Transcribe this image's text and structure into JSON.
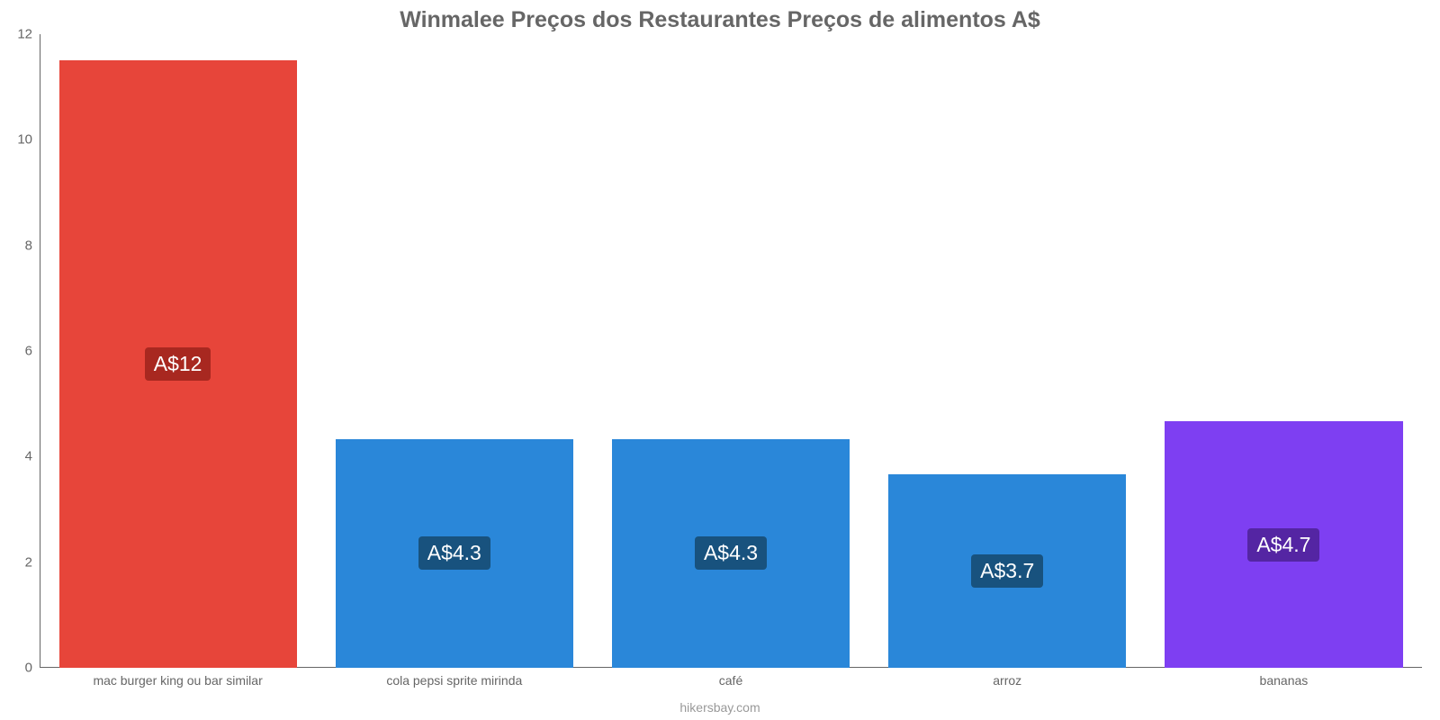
{
  "chart": {
    "type": "bar",
    "title": "Winmalee Preços dos Restaurantes Preços de alimentos A$",
    "title_fontsize": 25,
    "title_color": "#666666",
    "background_color": "#ffffff",
    "axis_color": "#666666",
    "tick_label_color": "#666666",
    "tick_fontsize": 15,
    "x_tick_fontsize": 14,
    "bar_width_pct": 86,
    "ylim": [
      0,
      12
    ],
    "yticks": [
      0,
      2,
      4,
      6,
      8,
      10,
      12
    ],
    "categories": [
      "mac burger king ou bar similar",
      "cola pepsi sprite mirinda",
      "café",
      "arroz",
      "bananas"
    ],
    "values": [
      11.5,
      4.33,
      4.33,
      3.67,
      4.67
    ],
    "value_labels": [
      "A$12",
      "A$4.3",
      "A$4.3",
      "A$3.7",
      "A$4.7"
    ],
    "bar_colors": [
      "#e7453a",
      "#2a87d9",
      "#2a87d9",
      "#2a87d9",
      "#7e3ff2"
    ],
    "label_bg_colors": [
      "#a82820",
      "#18527e",
      "#18527e",
      "#18527e",
      "#5425a3"
    ],
    "label_text_color": "#ffffff",
    "label_fontsize": 23,
    "footer": "hikersbay.com",
    "footer_color": "#999999",
    "footer_fontsize": 14
  }
}
